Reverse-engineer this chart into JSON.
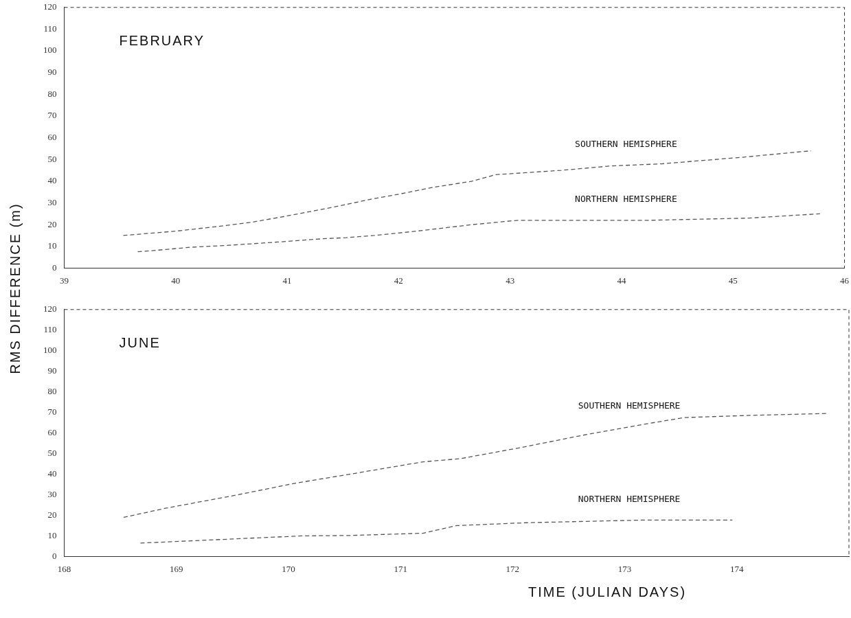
{
  "chart_data": [
    {
      "type": "line",
      "title": "FEBRUARY",
      "ylabel": "RMS DIFFERENCE (m)",
      "xlim": [
        39,
        46
      ],
      "xticks": [
        39,
        40,
        41,
        42,
        43,
        44,
        45,
        46
      ],
      "ylim": [
        0,
        120
      ],
      "yticks": [
        0,
        10,
        20,
        30,
        40,
        50,
        60,
        70,
        80,
        90,
        100,
        110,
        120
      ],
      "grid": false,
      "legend": false,
      "line_style": "dashed",
      "marker": "none",
      "series": [
        {
          "name": "SOUTHERN HEMISPHERE",
          "color": "#555555",
          "x": [
            39.53,
            40,
            40.35,
            40.67,
            41,
            41.41,
            41.78,
            42,
            42.29,
            42.66,
            42.87,
            43.46,
            43.9,
            44.36,
            45.08,
            45.7
          ],
          "values": [
            15,
            17,
            19,
            21,
            24,
            28,
            32,
            34,
            37,
            40,
            43,
            45,
            47,
            48,
            51,
            54
          ]
        },
        {
          "name": "NORTHERN HEMISPHERE",
          "color": "#555555",
          "x": [
            39.66,
            39.9,
            40.11,
            40.48,
            40.92,
            41.32,
            41.53,
            41.78,
            42.16,
            42.66,
            43.07,
            43.68,
            44.25,
            45.14,
            45.78
          ],
          "values": [
            7.5,
            8.5,
            9.5,
            10.5,
            12,
            13.5,
            14,
            15,
            17,
            20,
            22,
            22,
            22,
            23,
            25
          ]
        }
      ]
    },
    {
      "type": "line",
      "title": "JUNE",
      "xlabel": "TIME (JULIAN DAYS)",
      "xlim": [
        168,
        175
      ],
      "xticks": [
        168,
        169,
        170,
        171,
        172,
        173,
        174,
        {
          "value": 175,
          "label": null
        }
      ],
      "ylim": [
        0,
        120
      ],
      "yticks": [
        0,
        10,
        20,
        30,
        40,
        50,
        60,
        70,
        80,
        90,
        100,
        110,
        120
      ],
      "grid": false,
      "legend": false,
      "line_style": "dashed",
      "marker": "none",
      "series": [
        {
          "name": "SOUTHERN HEMISPHERE",
          "color": "#555555",
          "x": [
            168.53,
            168.91,
            169.55,
            170.05,
            170.55,
            171.2,
            171.53,
            172.08,
            172.68,
            173.2,
            173.53,
            174.08,
            174.8
          ],
          "values": [
            19,
            23.5,
            30,
            35.5,
            40,
            46,
            47.5,
            53,
            59.5,
            64.5,
            67.5,
            68.5,
            69.5
          ]
        },
        {
          "name": "NORTHERN HEMISPHERE",
          "color": "#555555",
          "x": [
            168.68,
            169.5,
            170.12,
            170.55,
            171.2,
            171.5,
            172.12,
            173.17,
            173.96
          ],
          "values": [
            6.5,
            8.5,
            10,
            10.2,
            11.3,
            15,
            16.4,
            17.7,
            17.7
          ]
        }
      ]
    }
  ]
}
